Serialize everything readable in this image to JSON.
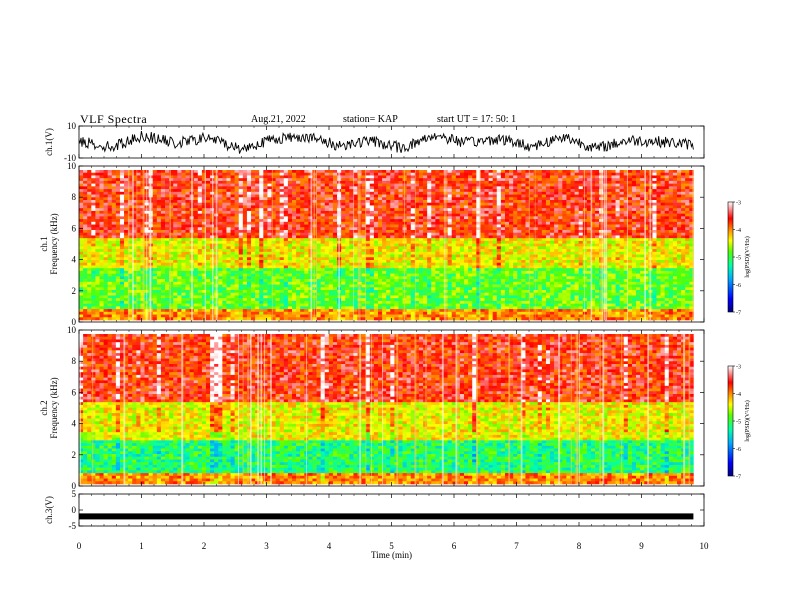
{
  "header": {
    "title": "VLF Spectra",
    "date": "Aug.21, 2022",
    "station": "station= KAP",
    "start": "start  UT =   17: 50: 1"
  },
  "chart_data": [
    {
      "type": "line",
      "panel": "ch1-waveform",
      "ylabel": "ch.1(V)",
      "ylim": [
        -10,
        10
      ],
      "yticks": [
        "10",
        "-10"
      ],
      "series": [
        {
          "values": [
            0.5,
            -3.2,
            4.1,
            -1.0,
            2.8,
            -4.5,
            1.9,
            3.6,
            -2.2,
            0.8,
            -3.9,
            4.4,
            -0.6,
            2.1,
            -2.8,
            3.3,
            -4.1,
            1.2,
            0.2,
            -1.7
          ]
        }
      ]
    },
    {
      "type": "heatmap",
      "panel": "ch1-spectrogram",
      "ylabel": "ch.1\nFrequency (kHz)",
      "ylim": [
        0,
        10
      ],
      "yticks": [
        "0",
        "2",
        "4",
        "6",
        "8",
        "10"
      ],
      "bands": [
        {
          "from": 0,
          "to": 0.8,
          "level": -4.0
        },
        {
          "from": 0.8,
          "to": 3.5,
          "level": -5.0
        },
        {
          "from": 3.5,
          "to": 5.5,
          "level": -4.5
        },
        {
          "from": 5.5,
          "to": 10,
          "level": -3.6
        }
      ],
      "colorbar": {
        "label": "log(PSD)(V²/Hz)",
        "range": [
          -7,
          -3
        ],
        "ticks": [
          "-3",
          "-4",
          "-5",
          "-6",
          "-7"
        ]
      }
    },
    {
      "type": "heatmap",
      "panel": "ch2-spectrogram",
      "ylabel": "ch.2\nFrequency (kHz)",
      "ylim": [
        0,
        10
      ],
      "yticks": [
        "0",
        "2",
        "4",
        "6",
        "8",
        "10"
      ],
      "bands": [
        {
          "from": 0,
          "to": 0.8,
          "level": -4.0
        },
        {
          "from": 0.8,
          "to": 3.0,
          "level": -5.3
        },
        {
          "from": 3.0,
          "to": 5.5,
          "level": -4.5
        },
        {
          "from": 5.5,
          "to": 10,
          "level": -3.6
        }
      ],
      "colorbar": {
        "label": "log(PSD)(V²/Hz)",
        "range": [
          -7,
          -3
        ],
        "ticks": [
          "-3",
          "-4",
          "-5",
          "-6",
          "-7"
        ]
      }
    },
    {
      "type": "line",
      "panel": "ch3-waveform",
      "ylabel": "ch.3(V)",
      "ylim": [
        -5,
        5
      ],
      "yticks": [
        "5",
        "0",
        "-5"
      ],
      "series": [
        {
          "values": [
            -2,
            -2,
            -2,
            -2,
            -2,
            -2,
            -2,
            -2,
            -2,
            -2
          ]
        }
      ]
    }
  ],
  "xaxis": {
    "label": "Time (min)",
    "range": [
      0,
      10
    ],
    "ticks": [
      "0",
      "1",
      "2",
      "3",
      "4",
      "5",
      "6",
      "7",
      "8",
      "9",
      "10"
    ],
    "data_end": 9.83
  },
  "colors": {
    "colormap": [
      "#00007a",
      "#0000ff",
      "#00aaff",
      "#00ffaa",
      "#55ff00",
      "#ffff00",
      "#ff8800",
      "#ff0000",
      "#ffffff"
    ]
  }
}
